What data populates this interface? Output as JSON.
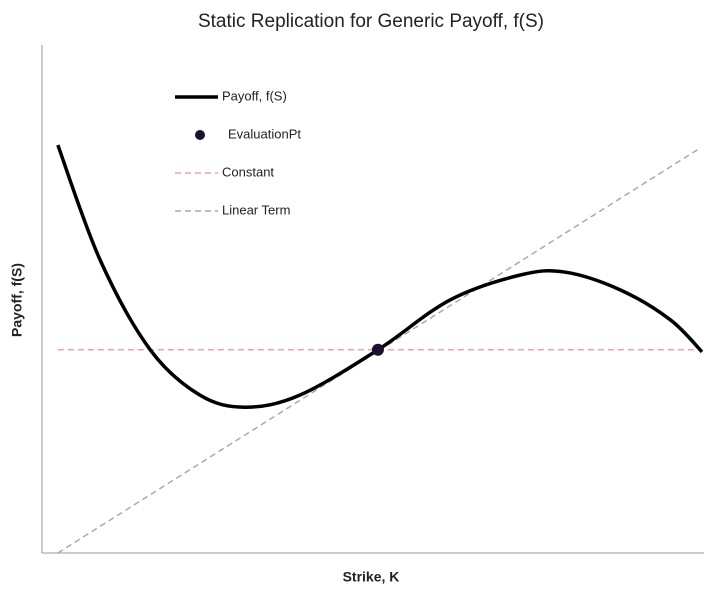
{
  "chart_data": {
    "type": "line",
    "title": "Static Replication for Generic Payoff, f(S)",
    "xlabel": "Strike, K",
    "ylabel": "Payoff, f(S)",
    "xlim": [
      0,
      10
    ],
    "ylim": [
      0,
      10
    ],
    "legend": "upper left",
    "series": [
      {
        "name": "Payoff, f(S)",
        "color": "#000000",
        "dashed": false,
        "marker": "none",
        "x": [
          0.24,
          0.88,
          1.64,
          2.39,
          3.08,
          3.91,
          5.09,
          6.18,
          7.24,
          7.92,
          8.76,
          9.52,
          10
        ],
        "values": [
          8.03,
          5.77,
          4.0,
          3.11,
          2.87,
          3.11,
          4.0,
          4.98,
          5.47,
          5.53,
          5.18,
          4.59,
          3.96
        ]
      },
      {
        "name": "EvaluationPt",
        "color": "#1a1030",
        "dashed": false,
        "marker": "circle",
        "x": [
          5.09
        ],
        "values": [
          4.0
        ]
      },
      {
        "name": "Constant",
        "color": "#f4a0a0",
        "dashed": true,
        "marker": "none",
        "x": [
          0.24,
          10
        ],
        "values": [
          4.0,
          4.0
        ]
      },
      {
        "name": "Linear Term",
        "color": "#aaaaaa",
        "dashed": true,
        "marker": "none",
        "x": [
          0.24,
          9.97
        ],
        "values": [
          0,
          7.97
        ]
      }
    ]
  }
}
